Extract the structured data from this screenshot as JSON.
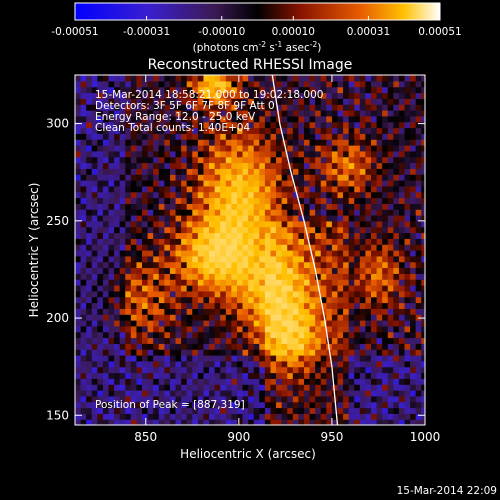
{
  "chart_data": {
    "type": "heatmap",
    "title": "Reconstructed RHESSI Image",
    "xlabel": "Heliocentric X (arcsec)",
    "ylabel": "Heliocentric Y (arcsec)",
    "xlim": [
      812,
      1000
    ],
    "ylim": [
      145,
      325
    ],
    "x_ticks": [
      850,
      900,
      950,
      1000
    ],
    "y_ticks": [
      150,
      200,
      250,
      300
    ],
    "colorbar": {
      "range": [
        -0.00051,
        0.00051
      ],
      "tick_labels": [
        "-0.00051",
        "-0.00031",
        "-0.00010",
        "0.00010",
        "0.00031",
        "0.00051"
      ],
      "tick_values": [
        -0.00051,
        -0.00031,
        -0.0001,
        0.0001,
        0.00031,
        0.00051
      ],
      "unit_text": [
        "(photons cm",
        "-2",
        " s",
        "-1",
        " asec",
        "-2",
        ")"
      ],
      "colormap": [
        "#0000ff",
        "#5a2fb4",
        "#000000",
        "#a01e00",
        "#f0820a",
        "#ffffff"
      ]
    },
    "info_lines": [
      "15-Mar-2014 18:58:21.000 to 19:02:18.000",
      "Detectors: 3F 5F 6F 7F 8F 9F  Att 0",
      "Energy Range: 12.0 - 25.0 keV",
      "Clean    Total counts: 1.40E+04"
    ],
    "peak_text": "Position of Peak = [887,319]",
    "peak": [
      887,
      319
    ],
    "limb_curve": [
      [
        918,
        325
      ],
      [
        922,
        300
      ],
      [
        928,
        275
      ],
      [
        935,
        250
      ],
      [
        941,
        225
      ],
      [
        946,
        200
      ],
      [
        950,
        175
      ],
      [
        953,
        145
      ]
    ],
    "bright_regions": [
      {
        "x": 900,
        "y": 262,
        "sx": 15,
        "sy": 22,
        "amp": 1.0
      },
      {
        "x": 886,
        "y": 232,
        "sx": 14,
        "sy": 12,
        "amp": 0.95
      },
      {
        "x": 918,
        "y": 215,
        "sx": 14,
        "sy": 16,
        "amp": 0.9
      },
      {
        "x": 928,
        "y": 190,
        "sx": 10,
        "sy": 12,
        "amp": 0.75
      },
      {
        "x": 887,
        "y": 319,
        "sx": 8,
        "sy": 6,
        "amp": 1.0
      },
      {
        "x": 958,
        "y": 278,
        "sx": 10,
        "sy": 10,
        "amp": 0.55
      },
      {
        "x": 848,
        "y": 210,
        "sx": 12,
        "sy": 14,
        "amp": 0.45
      },
      {
        "x": 975,
        "y": 222,
        "sx": 9,
        "sy": 12,
        "amp": 0.5
      }
    ]
  },
  "footer_timestamp": "15-Mar-2014 22:09"
}
